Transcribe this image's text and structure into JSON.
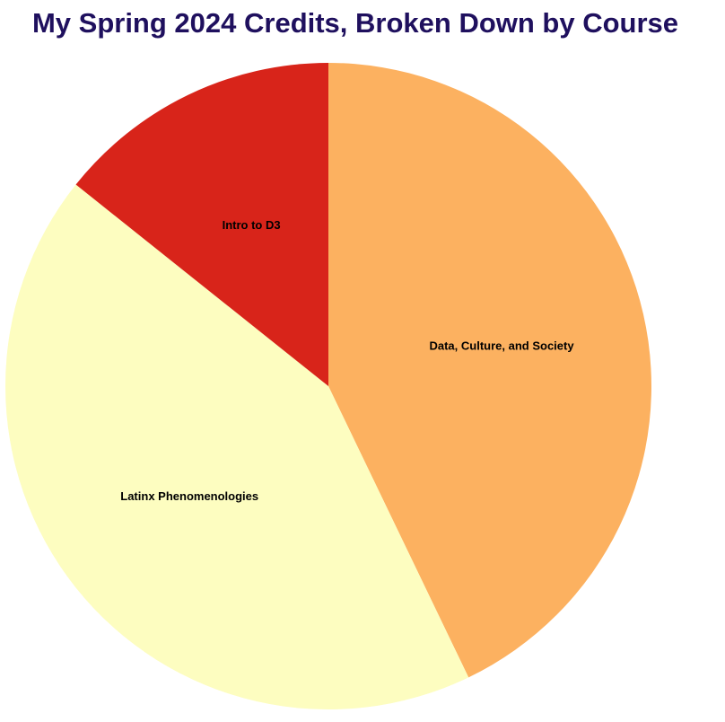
{
  "chart_data": {
    "type": "pie",
    "title": "My Spring 2024 Credits, Broken Down by Course",
    "categories": [
      "Data, Culture, and Society",
      "Latinx Phenomenologies",
      "Intro to D3"
    ],
    "values": [
      3,
      3,
      1
    ],
    "colors": [
      "#fcb160",
      "#fdfdc0",
      "#d8241a"
    ],
    "title_color": "#1f105e",
    "legend": "none",
    "start_angle": "12 o'clock",
    "direction": "clockwise"
  }
}
